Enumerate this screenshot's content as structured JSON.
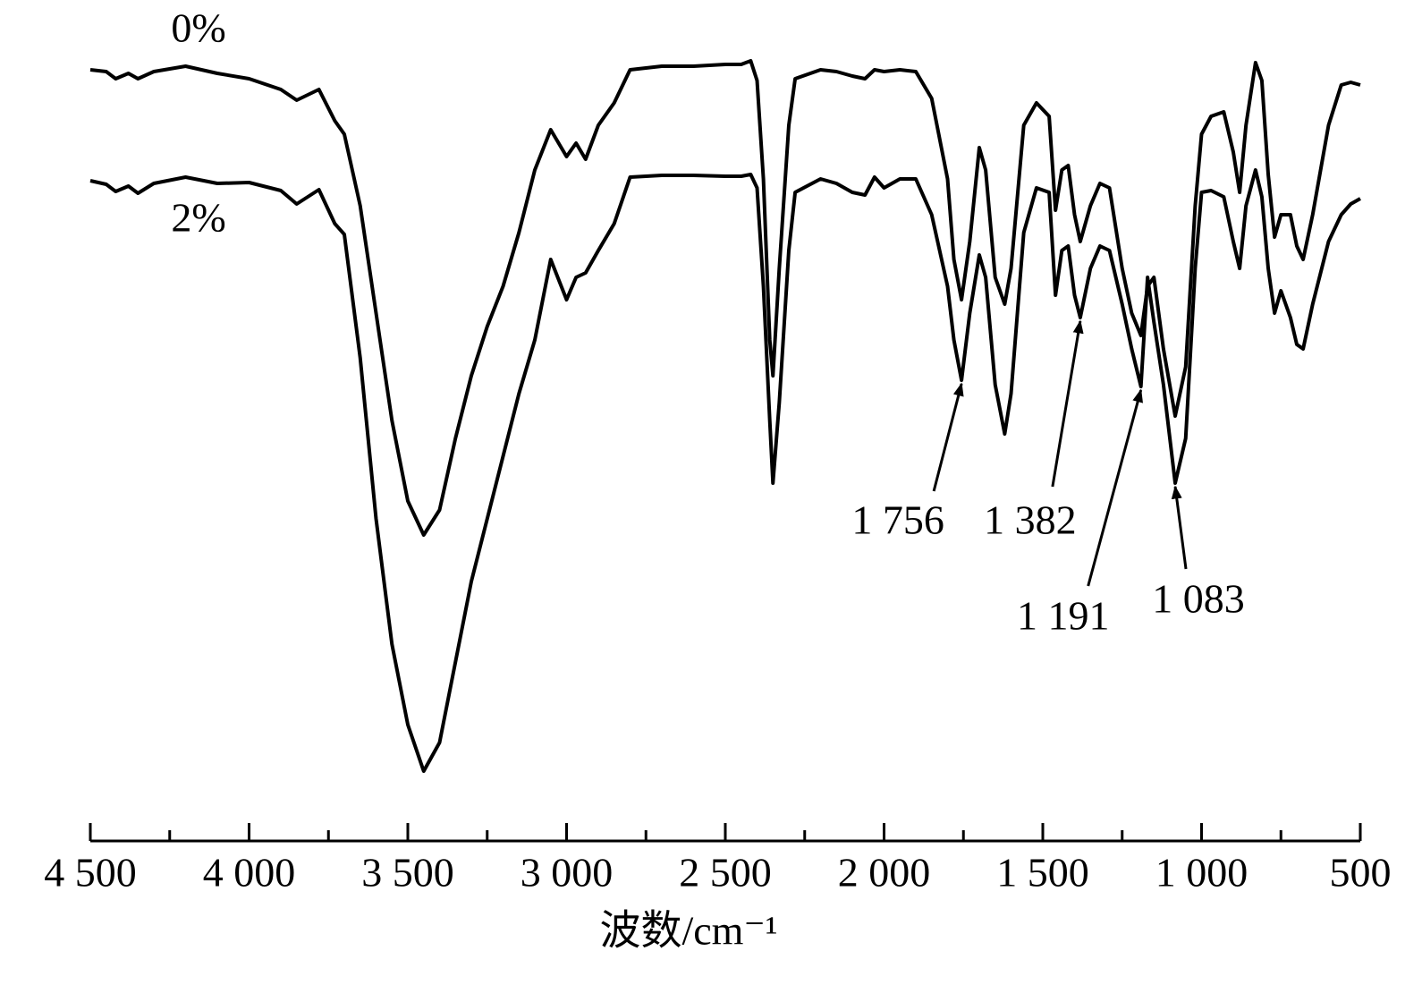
{
  "chart_data": {
    "type": "line",
    "x_label": "波数/cm⁻¹",
    "x": [
      4500,
      4450,
      4420,
      4380,
      4350,
      4300,
      4200,
      4100,
      4000,
      3900,
      3850,
      3780,
      3730,
      3700,
      3650,
      3600,
      3550,
      3500,
      3450,
      3400,
      3350,
      3300,
      3250,
      3200,
      3150,
      3100,
      3050,
      3000,
      2970,
      2940,
      2900,
      2850,
      2800,
      2700,
      2600,
      2500,
      2450,
      2420,
      2400,
      2380,
      2360,
      2350,
      2330,
      2300,
      2280,
      2200,
      2150,
      2100,
      2060,
      2030,
      2000,
      1950,
      1900,
      1850,
      1800,
      1780,
      1756,
      1730,
      1700,
      1680,
      1650,
      1620,
      1600,
      1560,
      1520,
      1480,
      1460,
      1440,
      1420,
      1400,
      1382,
      1350,
      1320,
      1290,
      1250,
      1220,
      1191,
      1170,
      1150,
      1120,
      1083,
      1050,
      1020,
      1000,
      970,
      930,
      900,
      880,
      860,
      830,
      810,
      790,
      770,
      750,
      720,
      700,
      680,
      650,
      600,
      560,
      530,
      500
    ],
    "series": [
      {
        "name": "0%",
        "color": "#000000",
        "values": [
          842,
          840,
          832,
          838,
          832,
          840,
          846,
          838,
          832,
          820,
          808,
          820,
          785,
          770,
          690,
          570,
          450,
          360,
          322,
          350,
          430,
          500,
          555,
          600,
          660,
          730,
          775,
          745,
          760,
          742,
          780,
          805,
          842,
          846,
          846,
          848,
          848,
          852,
          830,
          720,
          540,
          500,
          620,
          780,
          832,
          842,
          840,
          835,
          832,
          842,
          840,
          842,
          840,
          810,
          720,
          630,
          585,
          650,
          755,
          730,
          610,
          580,
          620,
          780,
          805,
          790,
          685,
          730,
          735,
          680,
          650,
          690,
          715,
          710,
          620,
          570,
          545,
          600,
          610,
          530,
          455,
          510,
          690,
          770,
          790,
          795,
          750,
          705,
          780,
          850,
          830,
          725,
          655,
          680,
          680,
          645,
          630,
          680,
          780,
          825,
          828,
          825
        ]
      },
      {
        "name": "2%",
        "color": "#000000",
        "values": [
          718,
          714,
          706,
          712,
          704,
          715,
          722,
          715,
          716,
          707,
          692,
          708,
          670,
          658,
          520,
          340,
          200,
          110,
          58,
          90,
          180,
          270,
          340,
          410,
          480,
          540,
          630,
          585,
          610,
          615,
          640,
          670,
          722,
          724,
          724,
          723,
          723,
          725,
          710,
          600,
          450,
          380,
          470,
          640,
          705,
          720,
          715,
          705,
          702,
          722,
          710,
          720,
          720,
          680,
          600,
          540,
          495,
          570,
          635,
          610,
          490,
          435,
          480,
          660,
          710,
          705,
          590,
          640,
          645,
          590,
          565,
          620,
          645,
          640,
          580,
          530,
          488,
          610,
          560,
          490,
          380,
          430,
          620,
          705,
          707,
          700,
          650,
          620,
          690,
          730,
          700,
          620,
          570,
          595,
          565,
          535,
          530,
          580,
          650,
          680,
          692,
          698
        ]
      }
    ],
    "annotations": [
      {
        "label": "1 756",
        "x": 1756
      },
      {
        "label": "1 382",
        "x": 1382
      },
      {
        "label": "1 191",
        "x": 1191
      },
      {
        "label": "1 083",
        "x": 1083
      }
    ],
    "xlim": [
      4500,
      500
    ],
    "ylim": [
      0,
      880
    ],
    "xticks": [
      {
        "value": 4500,
        "label": "4 500"
      },
      {
        "value": 4000,
        "label": "4 000"
      },
      {
        "value": 3500,
        "label": "3 500"
      },
      {
        "value": 3000,
        "label": "3 000"
      },
      {
        "value": 2500,
        "label": "2 500"
      },
      {
        "value": 2000,
        "label": "2 000"
      },
      {
        "value": 1500,
        "label": "1 500"
      },
      {
        "value": 1000,
        "label": "1 000"
      },
      500
    ],
    "xticks_minor": [
      4250,
      3750,
      3250,
      2750,
      2250,
      1750,
      1250,
      750
    ]
  }
}
